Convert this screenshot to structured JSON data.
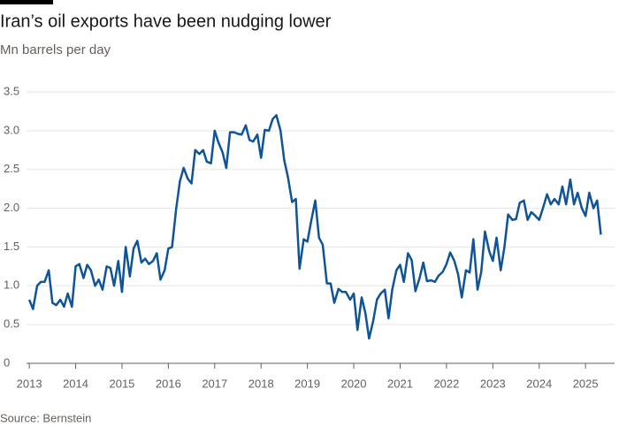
{
  "chart_data": {
    "type": "line",
    "title": "Iran’s oil exports have been nudging lower",
    "subtitle": "Mn barrels per day",
    "source": "Source: Bernstein",
    "x": [
      2013,
      2013.08,
      2013.17,
      2013.25,
      2013.33,
      2013.42,
      2013.5,
      2013.58,
      2013.67,
      2013.75,
      2013.83,
      2013.92,
      2014,
      2014.08,
      2014.17,
      2014.25,
      2014.33,
      2014.42,
      2014.5,
      2014.58,
      2014.67,
      2014.75,
      2014.83,
      2014.92,
      2015,
      2015.08,
      2015.17,
      2015.25,
      2015.33,
      2015.42,
      2015.5,
      2015.58,
      2015.67,
      2015.75,
      2015.83,
      2015.92,
      2016,
      2016.08,
      2016.17,
      2016.25,
      2016.33,
      2016.42,
      2016.5,
      2016.58,
      2016.67,
      2016.75,
      2016.83,
      2016.92,
      2017,
      2017.08,
      2017.17,
      2017.25,
      2017.33,
      2017.42,
      2017.5,
      2017.58,
      2017.67,
      2017.75,
      2017.83,
      2017.92,
      2018,
      2018.08,
      2018.17,
      2018.25,
      2018.33,
      2018.42,
      2018.5,
      2018.58,
      2018.67,
      2018.75,
      2018.83,
      2018.92,
      2019,
      2019.08,
      2019.17,
      2019.25,
      2019.33,
      2019.42,
      2019.5,
      2019.58,
      2019.67,
      2019.75,
      2019.83,
      2019.92,
      2020,
      2020.08,
      2020.17,
      2020.25,
      2020.33,
      2020.42,
      2020.5,
      2020.58,
      2020.67,
      2020.75,
      2020.83,
      2020.92,
      2021,
      2021.08,
      2021.17,
      2021.25,
      2021.33,
      2021.42,
      2021.5,
      2021.58,
      2021.67,
      2021.75,
      2021.83,
      2021.92,
      2022,
      2022.08,
      2022.17,
      2022.25,
      2022.33,
      2022.42,
      2022.5,
      2022.58,
      2022.67,
      2022.75,
      2022.83,
      2022.92,
      2023,
      2023.08,
      2023.17,
      2023.25,
      2023.33,
      2023.42,
      2023.5,
      2023.58,
      2023.67,
      2023.75,
      2023.83,
      2023.92,
      2024,
      2024.08,
      2024.17,
      2024.25,
      2024.33,
      2024.42,
      2024.5,
      2024.58,
      2024.67,
      2024.75,
      2024.83,
      2024.92,
      2025,
      2025.08,
      2025.17,
      2025.25,
      2025.33
    ],
    "series": [
      {
        "color": "#0f5499",
        "values": [
          0.82,
          0.7,
          1.0,
          1.05,
          1.05,
          1.2,
          0.78,
          0.75,
          0.82,
          0.73,
          0.9,
          0.73,
          1.25,
          1.28,
          1.1,
          1.27,
          1.2,
          1.0,
          1.08,
          0.95,
          1.25,
          1.23,
          1.0,
          1.32,
          0.92,
          1.5,
          1.12,
          1.48,
          1.58,
          1.3,
          1.35,
          1.28,
          1.32,
          1.42,
          1.08,
          1.2,
          1.48,
          1.5,
          2.0,
          2.35,
          2.52,
          2.38,
          2.32,
          2.75,
          2.7,
          2.75,
          2.6,
          2.58,
          3.0,
          2.85,
          2.72,
          2.52,
          2.98,
          2.98,
          2.96,
          2.95,
          3.07,
          2.88,
          2.86,
          2.95,
          2.65,
          3.01,
          3.0,
          3.15,
          3.2,
          3.0,
          2.62,
          2.4,
          2.08,
          2.12,
          1.22,
          1.6,
          1.57,
          1.83,
          2.1,
          1.62,
          1.53,
          1.03,
          1.03,
          0.78,
          0.96,
          0.92,
          0.92,
          0.82,
          0.9,
          0.43,
          0.85,
          0.65,
          0.32,
          0.55,
          0.82,
          0.9,
          0.95,
          0.58,
          0.95,
          1.2,
          1.27,
          1.05,
          1.42,
          1.33,
          0.93,
          1.1,
          1.3,
          1.06,
          1.07,
          1.05,
          1.13,
          1.18,
          1.28,
          1.43,
          1.32,
          1.15,
          0.85,
          1.2,
          1.17,
          1.6,
          0.95,
          1.18,
          1.7,
          1.45,
          1.32,
          1.62,
          1.2,
          1.5,
          1.92,
          1.85,
          1.86,
          2.07,
          2.1,
          1.85,
          1.95,
          1.9,
          1.85,
          2.0,
          2.18,
          2.05,
          2.12,
          2.05,
          2.28,
          2.05,
          2.37,
          2.05,
          2.2,
          2.0,
          1.9,
          2.2,
          2.0,
          2.1,
          1.66
        ]
      }
    ],
    "xlim": [
      2012.75,
      2025.34
    ],
    "xticks": [
      2013,
      2014,
      2015,
      2016,
      2017,
      2018,
      2019,
      2020,
      2021,
      2022,
      2023,
      2024,
      2025
    ],
    "ylim": [
      0,
      3.5
    ],
    "yticks": [
      0,
      0.5,
      {
        "value": 1,
        "label": "1.0"
      },
      1.5,
      {
        "value": 2,
        "label": "2.0"
      },
      2.5,
      {
        "value": 3,
        "label": "3.0"
      },
      3.5
    ],
    "grid": true
  }
}
